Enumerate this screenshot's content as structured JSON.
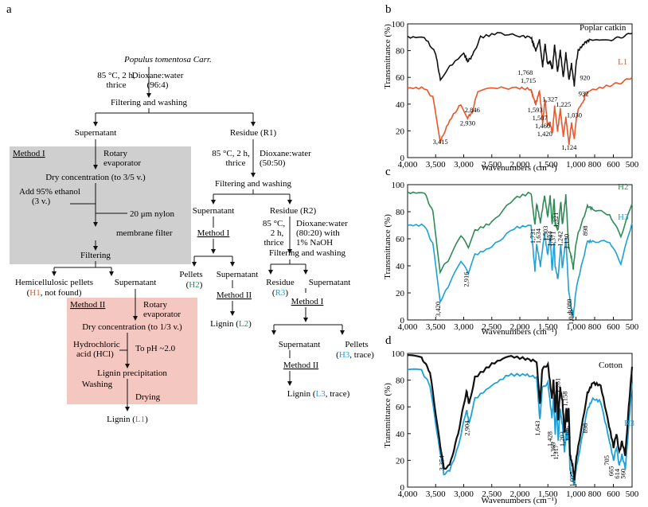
{
  "panel_letters": [
    "a",
    "b",
    "c",
    "d"
  ],
  "flowchart": {
    "source": "Populus tomentosa Carr.",
    "step1_left": "85 °C, 2 h,",
    "step1_left2": "thrice",
    "step1_right": "Dioxane:water",
    "step1_right2": "(96:4)",
    "filter1": "Filtering and washing",
    "supernatant1": "Supernatant",
    "residue1": "Residue (R1)",
    "method1_label": "Method I",
    "rotary1": "Rotary",
    "rotary1b": "evaporator",
    "dryconc1": "Dry concentration (to 3/5 v.)",
    "ethanol1": "Add 95% ethanol",
    "ethanol2": "(3 v.)",
    "nylon1": "20 μm nylon",
    "nylon2": "membrane filter",
    "filtering": "Filtering",
    "hemi1": "Hemicellulosic pellets",
    "hemi2a": "(",
    "hemi2_code": "H1",
    "hemi2b": ", not found)",
    "supernatant2": "Supernatant",
    "method2_label": "Method II",
    "rotary2": "Rotary",
    "rotary2b": "evaporator",
    "dryconc2": "Dry concentration (to 1/3 v.)",
    "hcl1": "Hydrochloric",
    "hcl2": "acid (HCl)",
    "ph": "To pH ~2.0",
    "lignin_precip": "Lignin precipitation",
    "washing": "Washing",
    "drying": "Drying",
    "lignin_l1a": "Lignin (",
    "lignin_l1_code": "L1",
    "lignin_l1b": ")",
    "r1_left": "85 °C, 2 h,",
    "r1_left2": "thrice",
    "r1_right": "Dioxane:water",
    "r1_right2": "(50:50)",
    "filter2": "Filtering and washing",
    "supernatant3": "Supernatant",
    "residue2": "Residue (R2)",
    "method1b_label": "Method I",
    "pellets_h2a": "Pellets",
    "pellets_h2_code": "H2",
    "supernatant4": "Supernatant",
    "method2b_label": "Method II",
    "lignin_l2a": "Lignin (",
    "lignin_l2_code": "L2",
    "lignin_l2b": ")",
    "r2_left1": "85 °C,",
    "r2_left2": "2 h,",
    "r2_left3": "thrice",
    "r2_right1": "Dioxane:water",
    "r2_right2": "(80:20) with",
    "r2_right3": "1% NaOH",
    "filter3": "Filtering and washing",
    "residue_r3a": "Residue",
    "residue_r3_code": "R3",
    "supernatant5": "Supernatant",
    "method1c_label": "Method I",
    "supernatant6": "Supernatant",
    "pellets_h3a": "Pellets",
    "pellets_h3_code": "H3",
    "pellets_h3b": ", trace)",
    "method2c_label": "Method II",
    "lignin_l3a": "Lignin (",
    "lignin_l3_code": "L3",
    "lignin_l3b": ", trace)"
  },
  "colors": {
    "method1_box": "#cfcfcf",
    "method2_box": "#f4c7c0",
    "black": "#111111",
    "orange": "#e8562a",
    "green": "#2e8b57",
    "blue": "#1ea0d8"
  },
  "chart_data": [
    {
      "type": "line",
      "panel": "b",
      "xlabel": "Wavenumbers (cm⁻¹)",
      "ylabel": "Transmittance (%)",
      "xlim": [
        4000,
        500
      ],
      "ylim": [
        0,
        100
      ],
      "xticks": [
        "4,000",
        "3,500",
        "3,000",
        "2,500",
        "2,000",
        "1,500",
        "1,000",
        "800",
        "600",
        "500"
      ],
      "yticks": [
        "0",
        "20",
        "40",
        "60",
        "80",
        "100"
      ],
      "series": [
        {
          "name": "Poplar catkin",
          "color": "#111111"
        },
        {
          "name": "L1",
          "color": "#e8562a"
        }
      ],
      "peak_labels": [
        "3,415",
        "2,930",
        "2,846",
        "1,768",
        "1,715",
        "1,593",
        "1,507",
        "1,460",
        "1,420",
        "1,327",
        "1,225",
        "1,124",
        "1,030",
        "920",
        "932"
      ]
    },
    {
      "type": "line",
      "panel": "c",
      "xlabel": "Wavenumbers (cm⁻¹)",
      "ylabel": "Transmittance (%)",
      "xlim": [
        4000,
        500
      ],
      "ylim": [
        0,
        100
      ],
      "xticks": [
        "4,000",
        "3,500",
        "3,000",
        "2,500",
        "2,000",
        "1,500",
        "1,000",
        "800",
        "600",
        "500"
      ],
      "yticks": [
        "0",
        "20",
        "40",
        "60",
        "80",
        "100"
      ],
      "series": [
        {
          "name": "H2",
          "color": "#2e8b57"
        },
        {
          "name": "H3",
          "color": "#1ea0d8"
        }
      ],
      "peak_labels": [
        "3,420",
        "2,916",
        "1,731",
        "1,634",
        "1,503",
        "1,424",
        "1,371",
        "1,321",
        "1,242",
        "1,130",
        "1,080",
        "1,048",
        "898"
      ]
    },
    {
      "type": "line",
      "panel": "d",
      "xlabel": "Wavenumbers (cm⁻¹)",
      "ylabel": "Transmittance (%)",
      "xlim": [
        4000,
        500
      ],
      "ylim": [
        0,
        100
      ],
      "xticks": [
        "4,000",
        "3,500",
        "3,000",
        "2,500",
        "2,000",
        "1,500",
        "1,000",
        "800",
        "600",
        "500"
      ],
      "yticks": [
        "0",
        "20",
        "40",
        "60",
        "80",
        "100"
      ],
      "series": [
        {
          "name": "Cotton",
          "color": "#111111"
        },
        {
          "name": "R3",
          "color": "#1ea0d8"
        }
      ],
      "peak_labels": [
        "3,354",
        "2,904",
        "1,643",
        "1,428",
        "1,369",
        "1,317",
        "1,281",
        "1,203",
        "1,158",
        "1,106",
        "1,027",
        "898",
        "705",
        "665",
        "614",
        "560"
      ]
    }
  ]
}
